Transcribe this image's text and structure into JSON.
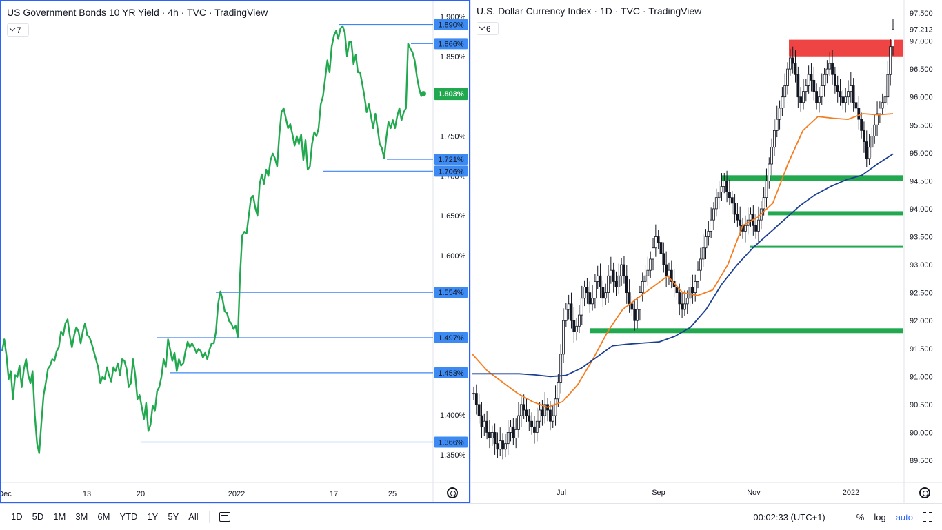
{
  "left": {
    "title": "US Government Bonds 10 YR Yield · 4h · TVC · TradingView",
    "legend_count": "7",
    "last_value_label": "1.803%",
    "colors": {
      "line": "#22a94f",
      "levels": "#3d85f5",
      "tag_bg": "#3d8bf2",
      "last_bg": "#22a94f",
      "border": "#2962ff"
    },
    "y_axis_ticks": [
      "1.900%",
      "1.850%",
      "1.800%",
      "1.750%",
      "1.700%",
      "1.650%",
      "1.600%",
      "1.550%",
      "1.500%",
      "1.450%",
      "1.400%",
      "1.350%"
    ],
    "x_axis_ticks": [
      "Dec",
      "13",
      "20",
      "2022",
      "17",
      "25"
    ],
    "level_tags": [
      "1.890%",
      "1.866%",
      "1.721%",
      "1.706%",
      "1.554%",
      "1.497%",
      "1.453%",
      "1.366%"
    ]
  },
  "right": {
    "title": "U.S. Dollar Currency Index · 1D · TVC · TradingView",
    "legend_count": "6",
    "colors": {
      "candle": "#131722",
      "ma_fast": "#f57c1f",
      "ma_slow": "#1c3f94",
      "support": "#22a94f",
      "resistance": "#ef4444"
    },
    "y_axis_ticks": [
      "97.500",
      "97.212",
      "97.000",
      "96.500",
      "96.000",
      "95.500",
      "95.000",
      "94.500",
      "94.000",
      "93.500",
      "93.000",
      "92.500",
      "92.000",
      "91.500",
      "91.000",
      "90.500",
      "90.000",
      "89.500"
    ],
    "x_axis_ticks": [
      "Jul",
      "Sep",
      "Nov",
      "2022"
    ]
  },
  "bottom": {
    "ranges": [
      "1D",
      "5D",
      "1M",
      "3M",
      "6M",
      "YTD",
      "1Y",
      "5Y",
      "All"
    ],
    "clock": "00:02:33 (UTC+1)",
    "percent": "%",
    "log": "log",
    "auto": "auto"
  },
  "chart_data": [
    {
      "type": "line",
      "title": "US Government Bonds 10 YR Yield · 4h · TVC · TradingView",
      "ylim": [
        1.34,
        1.91
      ],
      "x_ticks": [
        "Dec",
        "13",
        "20",
        "2022",
        "17",
        "25"
      ],
      "series": [
        {
          "values": [
            1.48,
            1.495,
            1.475,
            1.445,
            1.455,
            1.42,
            1.45,
            1.448,
            1.462,
            1.435,
            1.458,
            1.47,
            1.45,
            1.44,
            1.455,
            1.4,
            1.365,
            1.352,
            1.39,
            1.425,
            1.44,
            1.458,
            1.462,
            1.47,
            1.468,
            1.48,
            1.485,
            1.505,
            1.5,
            1.515,
            1.52,
            1.5,
            1.485,
            1.5,
            1.51,
            1.505,
            1.49,
            1.505,
            1.515,
            1.5,
            1.498,
            1.49,
            1.48,
            1.47,
            1.46,
            1.44,
            1.448,
            1.445,
            1.46,
            1.45,
            1.442,
            1.46,
            1.455,
            1.465,
            1.45,
            1.47,
            1.468,
            1.458,
            1.435,
            1.44,
            1.47,
            1.45,
            1.42,
            1.425,
            1.41,
            1.395,
            1.415,
            1.38,
            1.388,
            1.412,
            1.405,
            1.43,
            1.435,
            1.448,
            1.47,
            1.46,
            1.495,
            1.482,
            1.468,
            1.478,
            1.455,
            1.47,
            1.462,
            1.465,
            1.48,
            1.492,
            1.485,
            1.49,
            1.485,
            1.478,
            1.483,
            1.48,
            1.472,
            1.478,
            1.47,
            1.482,
            1.49,
            1.49,
            1.505,
            1.54,
            1.555,
            1.545,
            1.53,
            1.528,
            1.518,
            1.515,
            1.508,
            1.512,
            1.497,
            1.575,
            1.625,
            1.63,
            1.628,
            1.65,
            1.672,
            1.675,
            1.66,
            1.65,
            1.69,
            1.702,
            1.69,
            1.708,
            1.7,
            1.72,
            1.728,
            1.722,
            1.712,
            1.752,
            1.78,
            1.785,
            1.772,
            1.76,
            1.765,
            1.752,
            1.738,
            1.75,
            1.74,
            1.752,
            1.72,
            1.745,
            1.708,
            1.712,
            1.74,
            1.755,
            1.75,
            1.76,
            1.79,
            1.8,
            1.822,
            1.845,
            1.83,
            1.862,
            1.876,
            1.882,
            1.872,
            1.885,
            1.888,
            1.88,
            1.85,
            1.868,
            1.868,
            1.84,
            1.852,
            1.83,
            1.83,
            1.815,
            1.8,
            1.78,
            1.79,
            1.775,
            1.76,
            1.778,
            1.76,
            1.74,
            1.735,
            1.722,
            1.748,
            1.768,
            1.76,
            1.77,
            1.76,
            1.775,
            1.785,
            1.77,
            1.78,
            1.785,
            1.866,
            1.86,
            1.855,
            1.845,
            1.825,
            1.81,
            1.8,
            1.803
          ]
        }
      ],
      "horizontal_levels": [
        1.89,
        1.866,
        1.721,
        1.706,
        1.554,
        1.497,
        1.453,
        1.366
      ],
      "last_value": 1.803
    },
    {
      "type": "line",
      "title": "U.S. Dollar Currency Index · 1D · TVC · TradingView",
      "ylim": [
        89.25,
        97.75
      ],
      "x_ticks": [
        "Jul",
        "Sep",
        "Nov",
        "2022"
      ],
      "candle_closes": [
        90.7,
        90.5,
        90.3,
        90.1,
        90.2,
        90.0,
        89.9,
        90.0,
        89.8,
        89.7,
        89.85,
        89.7,
        89.8,
        90.0,
        90.1,
        89.9,
        90.05,
        90.3,
        90.5,
        90.4,
        90.3,
        90.2,
        90.1,
        90.0,
        90.2,
        90.4,
        90.3,
        90.5,
        90.4,
        90.2,
        90.3,
        90.6,
        90.9,
        91.4,
        92.0,
        92.2,
        92.3,
        92.0,
        91.8,
        91.9,
        92.1,
        92.4,
        92.6,
        92.5,
        92.3,
        92.4,
        92.7,
        92.8,
        92.6,
        92.4,
        92.5,
        92.8,
        92.9,
        92.7,
        92.6,
        92.8,
        93.0,
        92.8,
        92.5,
        92.3,
        92.2,
        92.0,
        92.2,
        92.5,
        92.7,
        92.8,
        92.9,
        93.1,
        93.3,
        93.5,
        93.4,
        93.2,
        93.0,
        92.8,
        92.9,
        92.7,
        92.6,
        92.5,
        92.3,
        92.2,
        92.3,
        92.4,
        92.6,
        92.5,
        92.7,
        92.9,
        93.1,
        93.3,
        93.5,
        93.6,
        93.8,
        94.0,
        94.2,
        94.3,
        94.4,
        94.5,
        94.3,
        94.2,
        94.1,
        93.9,
        93.8,
        93.7,
        93.6,
        93.7,
        93.8,
        93.9,
        93.7,
        93.6,
        93.8,
        94.0,
        94.2,
        94.5,
        94.8,
        95.1,
        95.4,
        95.6,
        95.8,
        96.0,
        96.2,
        96.5,
        96.7,
        96.6,
        96.4,
        96.0,
        95.9,
        96.1,
        96.2,
        96.4,
        96.3,
        96.1,
        95.9,
        96.0,
        96.2,
        96.4,
        96.5,
        96.6,
        96.4,
        96.2,
        96.1,
        96.0,
        95.9,
        96.0,
        96.1,
        96.2,
        95.9,
        95.8,
        95.6,
        95.4,
        95.2,
        94.9,
        95.1,
        95.3,
        95.5,
        95.7,
        95.8,
        95.9,
        96.0,
        96.4,
        96.9,
        97.212
      ],
      "series": [
        {
          "values": [
            91.4,
            91.1,
            90.9,
            90.7,
            90.55,
            90.45,
            90.55,
            90.85,
            91.3,
            91.8,
            92.2,
            92.4,
            92.6,
            92.8,
            92.5,
            92.45,
            92.55,
            93.0,
            93.7,
            93.85,
            94.1,
            94.8,
            95.4,
            95.65,
            95.62,
            95.6,
            95.7,
            95.68,
            95.7
          ]
        },
        {
          "values": [
            91.05,
            91.05,
            91.05,
            91.05,
            91.03,
            91.0,
            91.02,
            91.15,
            91.35,
            91.55,
            91.58,
            91.6,
            91.62,
            91.72,
            91.88,
            92.2,
            92.65,
            93.0,
            93.3,
            93.55,
            93.8,
            94.05,
            94.25,
            94.4,
            94.52,
            94.6,
            94.8,
            94.98
          ]
        }
      ],
      "resistance_zone": [
        96.8,
        96.95
      ],
      "support_levels": [
        94.55,
        93.92,
        93.32,
        91.82
      ]
    }
  ]
}
